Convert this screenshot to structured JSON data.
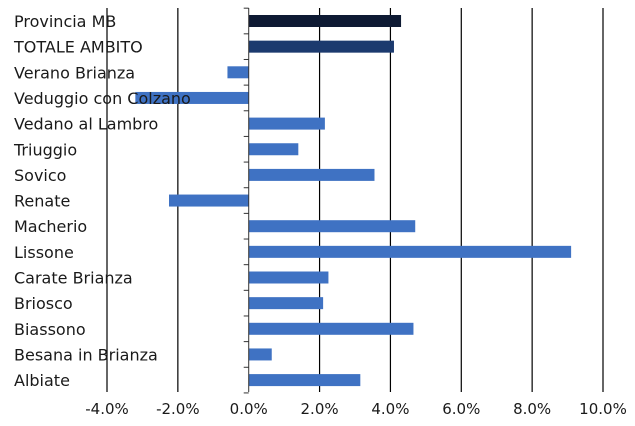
{
  "chart_data": {
    "type": "bar",
    "orientation": "horizontal",
    "title": "",
    "xlabel": "",
    "ylabel": "",
    "xlim": [
      -0.04,
      0.1
    ],
    "x_ticks": [
      -0.04,
      -0.02,
      0.0,
      0.02,
      0.04,
      0.06,
      0.08,
      0.1
    ],
    "x_tick_labels": [
      "-4.0%",
      "-2.0%",
      "0.0%",
      "2.0%",
      "4.0%",
      "6.0%",
      "8.0%",
      "10.0%"
    ],
    "grid": true,
    "legend": "none",
    "categories": [
      "Provincia MB",
      "TOTALE AMBITO",
      "Verano Brianza",
      "Veduggio con Colzano",
      "Vedano al Lambro",
      "Triuggio",
      "Sovico",
      "Renate",
      "Macherio",
      "Lissone",
      "Carate Brianza",
      "Briosco",
      "Biassono",
      "Besana in Brianza",
      "Albiate"
    ],
    "values": [
      0.043,
      0.041,
      -0.006,
      -0.032,
      0.0215,
      0.014,
      0.0355,
      -0.0225,
      0.047,
      0.091,
      0.0225,
      0.021,
      0.0465,
      0.0065,
      0.0315
    ],
    "colors": {
      "Provincia MB": "#0e1a33",
      "TOTALE AMBITO": "#1c3a6e",
      "default": "#3f72c3"
    }
  }
}
